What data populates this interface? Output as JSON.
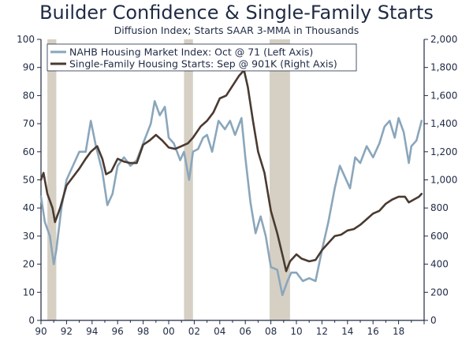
{
  "chart_data": {
    "type": "line",
    "title": "Builder Confidence & Single-Family Starts",
    "subtitle": "Diffusion Index; Starts SAAR 3-MMA in Thousands",
    "x_range": [
      1990,
      2020
    ],
    "x_ticks": [
      "90",
      "92",
      "94",
      "96",
      "98",
      "00",
      "02",
      "04",
      "06",
      "08",
      "10",
      "12",
      "14",
      "16",
      "18"
    ],
    "left_axis": {
      "range": [
        0,
        100
      ],
      "ticks": [
        "0",
        "10",
        "20",
        "30",
        "40",
        "50",
        "60",
        "70",
        "80",
        "90",
        "100"
      ]
    },
    "right_axis": {
      "range": [
        0,
        2000
      ],
      "ticks": [
        "0",
        "200",
        "400",
        "600",
        "800",
        "1,000",
        "1,200",
        "1,400",
        "1,600",
        "1,800",
        "2,000"
      ]
    },
    "recessions": [
      [
        1990.5,
        1991.2
      ],
      [
        2001.2,
        2001.9
      ],
      [
        2007.9,
        2009.5
      ]
    ],
    "legend_position": "top-left",
    "series": [
      {
        "name": "NAHB Housing Market Index: Oct @ 71 (Left Axis)",
        "axis": "left",
        "color": "#8aa6bb",
        "points": [
          [
            1990.0,
            44
          ],
          [
            1990.3,
            35
          ],
          [
            1990.7,
            30
          ],
          [
            1991.0,
            20
          ],
          [
            1991.2,
            25
          ],
          [
            1991.6,
            40
          ],
          [
            1992.0,
            50
          ],
          [
            1992.5,
            55
          ],
          [
            1993.0,
            60
          ],
          [
            1993.5,
            60
          ],
          [
            1993.9,
            71
          ],
          [
            1994.3,
            62
          ],
          [
            1994.8,
            53
          ],
          [
            1995.2,
            41
          ],
          [
            1995.6,
            45
          ],
          [
            1996.0,
            55
          ],
          [
            1996.5,
            58
          ],
          [
            1997.0,
            55
          ],
          [
            1997.5,
            57
          ],
          [
            1998.0,
            63
          ],
          [
            1998.6,
            70
          ],
          [
            1998.9,
            78
          ],
          [
            1999.3,
            73
          ],
          [
            1999.7,
            76
          ],
          [
            2000.0,
            65
          ],
          [
            2000.4,
            63
          ],
          [
            2000.9,
            57
          ],
          [
            2001.2,
            60
          ],
          [
            2001.6,
            50
          ],
          [
            2001.9,
            60
          ],
          [
            2002.3,
            61
          ],
          [
            2002.7,
            65
          ],
          [
            2003.0,
            66
          ],
          [
            2003.4,
            60
          ],
          [
            2003.9,
            71
          ],
          [
            2004.4,
            68
          ],
          [
            2004.8,
            71
          ],
          [
            2005.2,
            66
          ],
          [
            2005.7,
            72
          ],
          [
            2006.0,
            58
          ],
          [
            2006.4,
            42
          ],
          [
            2006.8,
            31
          ],
          [
            2007.2,
            37
          ],
          [
            2007.6,
            30
          ],
          [
            2008.0,
            19
          ],
          [
            2008.5,
            18
          ],
          [
            2008.9,
            9
          ],
          [
            2009.3,
            14
          ],
          [
            2009.6,
            17
          ],
          [
            2010.0,
            17
          ],
          [
            2010.5,
            14
          ],
          [
            2011.0,
            15
          ],
          [
            2011.5,
            14
          ],
          [
            2012.0,
            25
          ],
          [
            2012.5,
            35
          ],
          [
            2013.0,
            47
          ],
          [
            2013.4,
            55
          ],
          [
            2013.8,
            51
          ],
          [
            2014.2,
            47
          ],
          [
            2014.6,
            58
          ],
          [
            2015.0,
            56
          ],
          [
            2015.5,
            62
          ],
          [
            2016.0,
            58
          ],
          [
            2016.5,
            63
          ],
          [
            2016.9,
            69
          ],
          [
            2017.3,
            71
          ],
          [
            2017.7,
            65
          ],
          [
            2018.0,
            72
          ],
          [
            2018.4,
            67
          ],
          [
            2018.8,
            56
          ],
          [
            2019.0,
            62
          ],
          [
            2019.4,
            64
          ],
          [
            2019.8,
            71
          ]
        ]
      },
      {
        "name": "Single-Family Housing Starts: Sep @ 901K (Right Axis)",
        "axis": "right",
        "color": "#4a3a30",
        "points": [
          [
            1990.0,
            1000
          ],
          [
            1990.2,
            1050
          ],
          [
            1990.5,
            900
          ],
          [
            1990.9,
            800
          ],
          [
            1991.1,
            700
          ],
          [
            1991.5,
            800
          ],
          [
            1992.0,
            960
          ],
          [
            1992.5,
            1020
          ],
          [
            1993.0,
            1080
          ],
          [
            1993.5,
            1150
          ],
          [
            1993.9,
            1200
          ],
          [
            1994.4,
            1240
          ],
          [
            1994.8,
            1150
          ],
          [
            1995.1,
            1040
          ],
          [
            1995.5,
            1060
          ],
          [
            1996.0,
            1150
          ],
          [
            1996.5,
            1130
          ],
          [
            1997.0,
            1120
          ],
          [
            1997.5,
            1120
          ],
          [
            1998.0,
            1250
          ],
          [
            1998.5,
            1280
          ],
          [
            1999.0,
            1320
          ],
          [
            1999.5,
            1280
          ],
          [
            2000.0,
            1230
          ],
          [
            2000.5,
            1220
          ],
          [
            2001.0,
            1240
          ],
          [
            2001.5,
            1260
          ],
          [
            2001.9,
            1300
          ],
          [
            2002.5,
            1380
          ],
          [
            2003.0,
            1420
          ],
          [
            2003.5,
            1480
          ],
          [
            2004.0,
            1580
          ],
          [
            2004.5,
            1600
          ],
          [
            2005.0,
            1670
          ],
          [
            2005.5,
            1740
          ],
          [
            2005.9,
            1780
          ],
          [
            2006.2,
            1660
          ],
          [
            2006.6,
            1420
          ],
          [
            2007.0,
            1200
          ],
          [
            2007.5,
            1050
          ],
          [
            2008.0,
            780
          ],
          [
            2008.5,
            620
          ],
          [
            2009.0,
            430
          ],
          [
            2009.2,
            350
          ],
          [
            2009.5,
            420
          ],
          [
            2010.0,
            470
          ],
          [
            2010.4,
            440
          ],
          [
            2011.0,
            420
          ],
          [
            2011.5,
            430
          ],
          [
            2012.0,
            500
          ],
          [
            2012.5,
            550
          ],
          [
            2013.0,
            600
          ],
          [
            2013.5,
            610
          ],
          [
            2014.0,
            640
          ],
          [
            2014.5,
            650
          ],
          [
            2015.0,
            680
          ],
          [
            2015.5,
            720
          ],
          [
            2016.0,
            760
          ],
          [
            2016.5,
            780
          ],
          [
            2017.0,
            830
          ],
          [
            2017.5,
            860
          ],
          [
            2018.0,
            880
          ],
          [
            2018.5,
            880
          ],
          [
            2018.8,
            840
          ],
          [
            2019.2,
            860
          ],
          [
            2019.6,
            880
          ],
          [
            2019.8,
            900
          ]
        ]
      }
    ]
  }
}
